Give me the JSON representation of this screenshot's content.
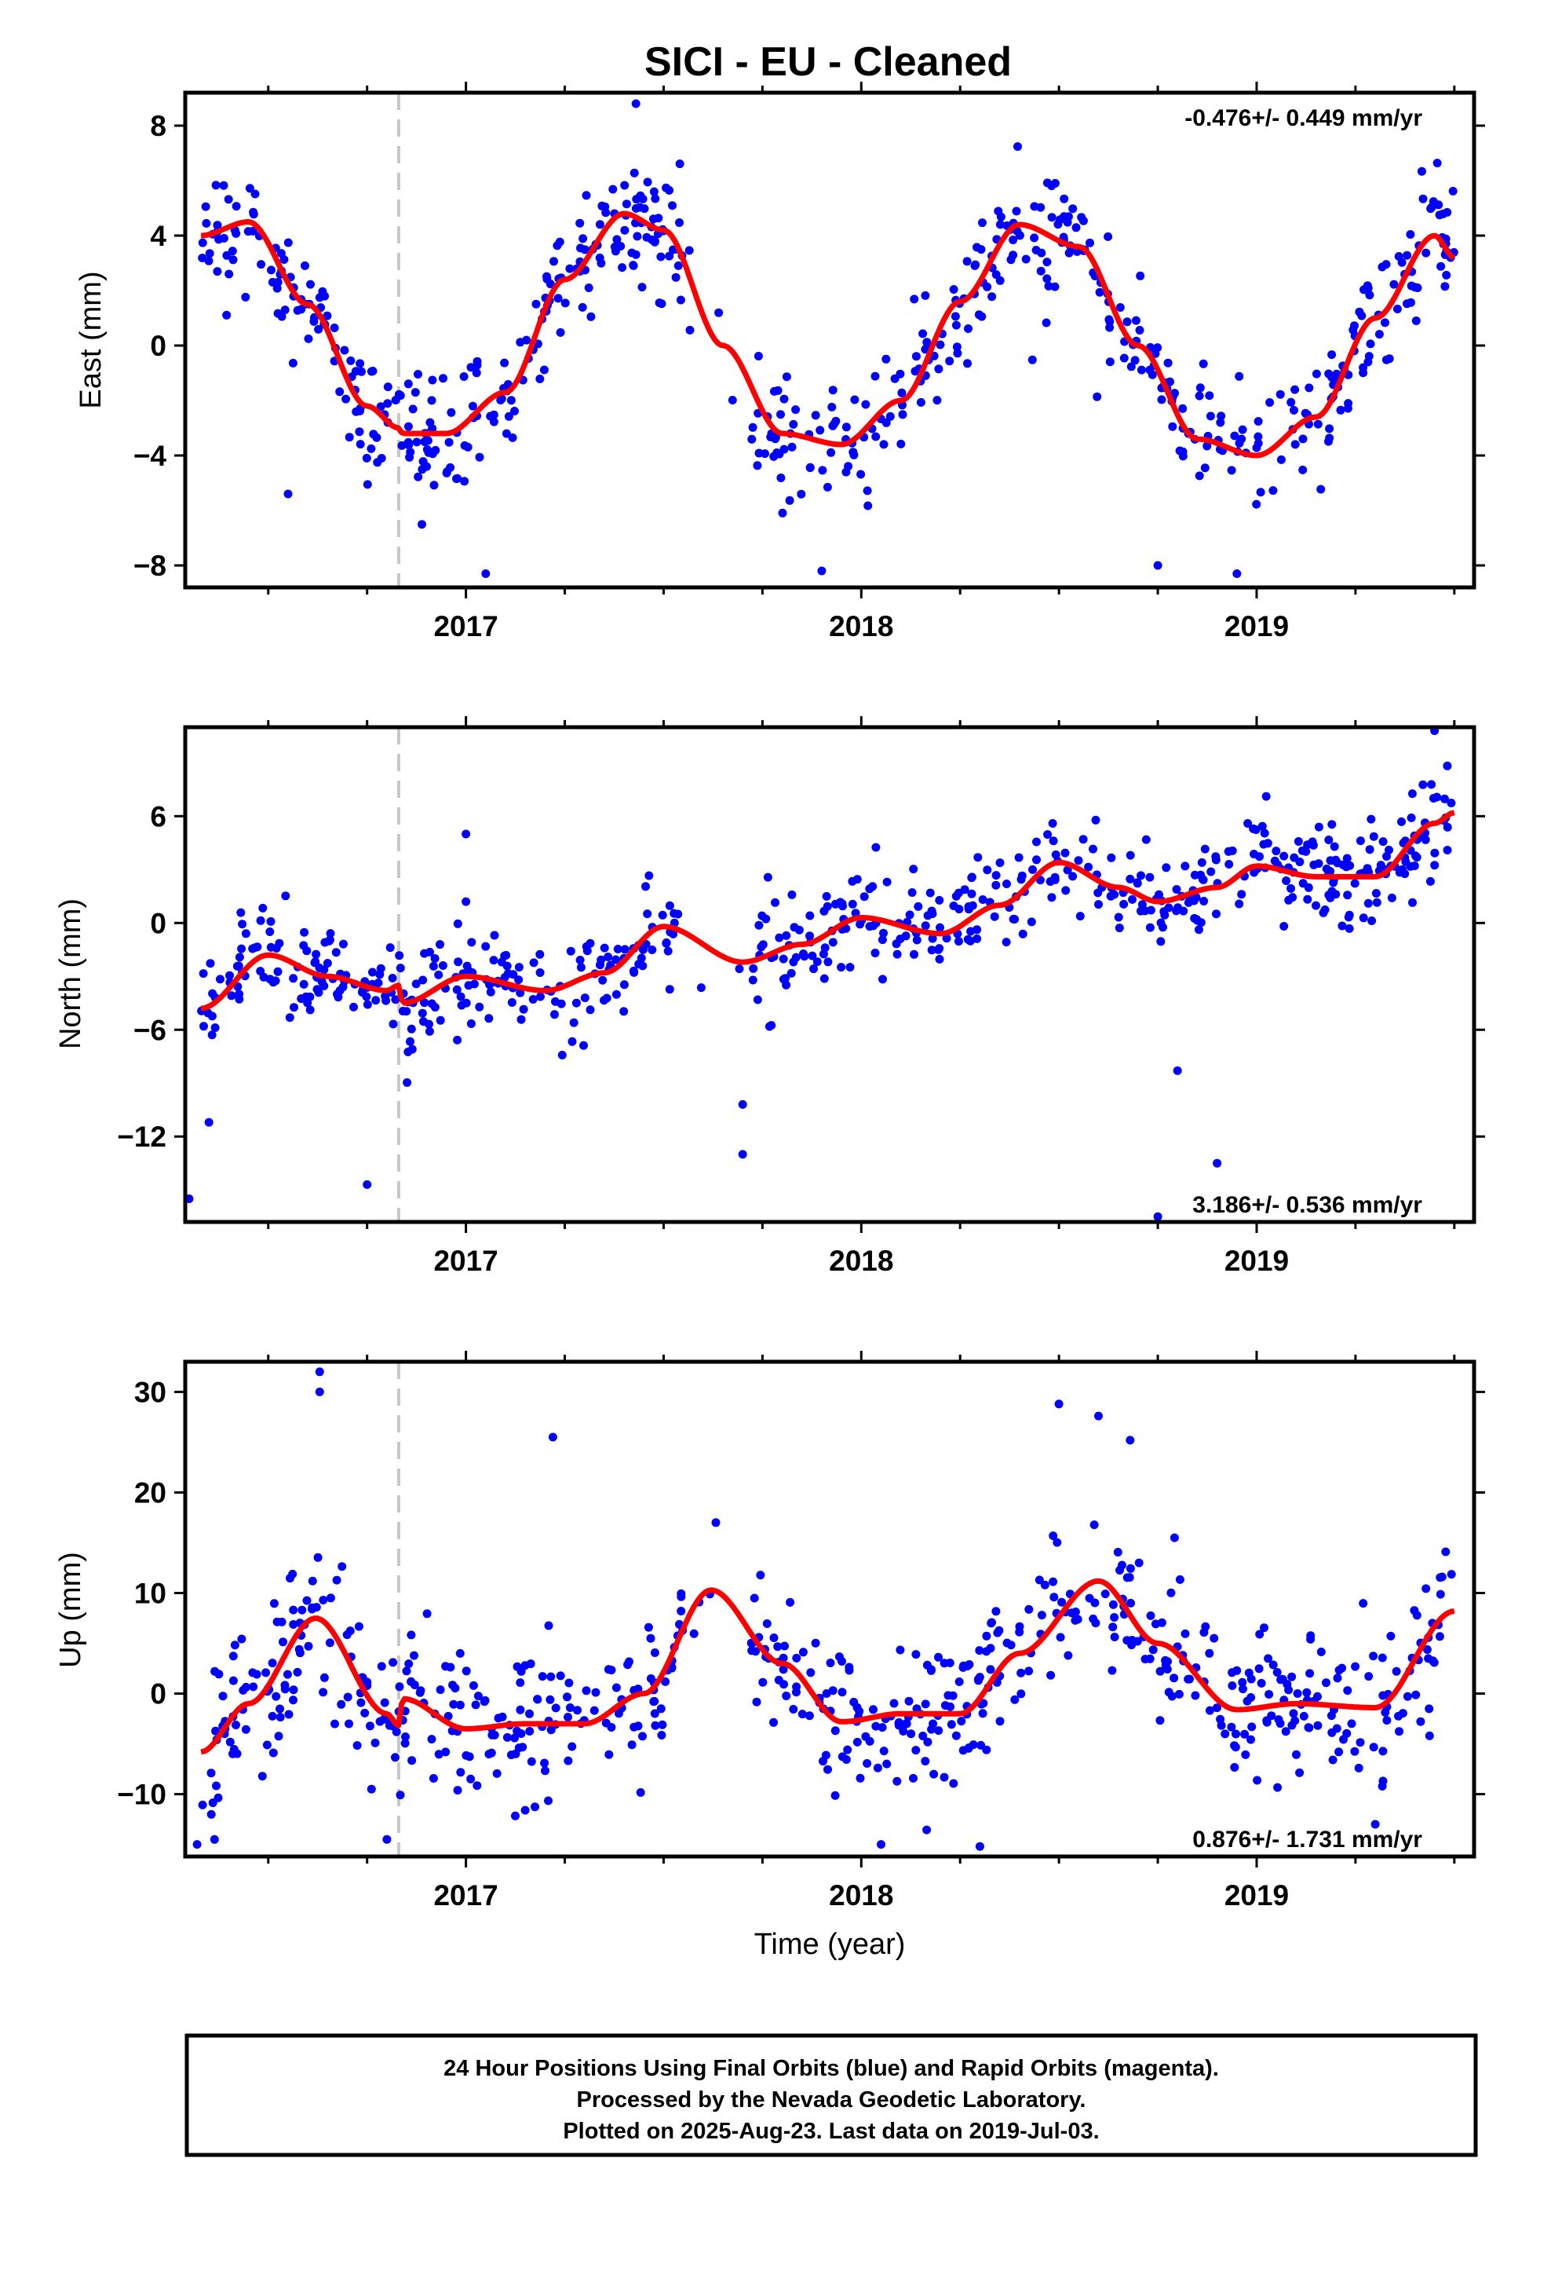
{
  "title": "SICI  - EU - Cleaned",
  "xlabel": "Time (year)",
  "footer": {
    "lines": [
      "24 Hour Positions Using Final Orbits (blue) and Rapid Orbits (magenta).",
      "Processed by the Nevada Geodetic Laboratory.",
      "Plotted on 2025-Aug-23. Last data on 2019-Jul-03."
    ]
  },
  "colors": {
    "points": "#0000ff",
    "fit": "#ff0000",
    "event_line": "#c8c8c8",
    "frame": "#000000"
  },
  "chart_data": [
    {
      "type": "scatter",
      "panel": "east",
      "ylabel": "East (mm)",
      "rate_text": "-0.476+/- 0.449 mm/yr",
      "rate_position": "top-right",
      "xlim": [
        2016.29,
        2019.55
      ],
      "ylim": [
        -8.8,
        9.2
      ],
      "xticks": [
        2017,
        2018,
        2019
      ],
      "yticks": [
        -8,
        -4,
        0,
        4,
        8
      ],
      "event_line_x": 2016.83,
      "fit_model": {
        "x": [
          2016.33,
          2016.45,
          2016.6,
          2016.75,
          2016.83,
          2016.84,
          2016.95,
          2017.1,
          2017.25,
          2017.4,
          2017.5,
          2017.65,
          2017.8,
          2017.95,
          2018.1,
          2018.25,
          2018.4,
          2018.55,
          2018.7,
          2018.85,
          2019.0,
          2019.15,
          2019.3,
          2019.45,
          2019.5
        ],
        "y": [
          4.0,
          4.5,
          1.5,
          -2.2,
          -3.0,
          -3.2,
          -3.2,
          -1.7,
          2.4,
          4.8,
          4.2,
          0.0,
          -3.2,
          -3.6,
          -2.0,
          1.6,
          4.4,
          3.6,
          0.0,
          -3.4,
          -4.0,
          -2.6,
          1.0,
          4.0,
          3.2
        ]
      },
      "scatter_model": {
        "n": 640,
        "noise": 1.15,
        "gap": [
          2017.55,
          2017.72
        ],
        "gap_density": 0.12,
        "outliers": [
          [
            2017.43,
            8.8
          ],
          [
            2017.05,
            -8.3
          ],
          [
            2017.9,
            -8.2
          ],
          [
            2018.75,
            -8.0
          ],
          [
            2018.95,
            -8.3
          ],
          [
            2016.55,
            -5.4
          ]
        ]
      }
    },
    {
      "type": "scatter",
      "panel": "north",
      "ylabel": "North (mm)",
      "rate_text": "3.186+/- 0.536 mm/yr",
      "rate_position": "bottom-right",
      "xlim": [
        2016.29,
        2019.55
      ],
      "ylim": [
        -16.8,
        11.0
      ],
      "xticks": [
        2017,
        2018,
        2019
      ],
      "yticks": [
        -12,
        -6,
        0,
        6
      ],
      "event_line_x": 2016.83,
      "fit_model": {
        "x": [
          2016.33,
          2016.5,
          2016.65,
          2016.8,
          2016.83,
          2016.84,
          2017.0,
          2017.2,
          2017.35,
          2017.5,
          2017.7,
          2017.85,
          2018.0,
          2018.2,
          2018.35,
          2018.5,
          2018.65,
          2018.75,
          2018.9,
          2019.0,
          2019.15,
          2019.3,
          2019.45,
          2019.5
        ],
        "y": [
          -4.8,
          -1.8,
          -3.0,
          -3.8,
          -3.5,
          -4.5,
          -3.0,
          -3.8,
          -2.8,
          -0.2,
          -2.2,
          -1.2,
          0.3,
          -0.6,
          1.0,
          3.4,
          2.0,
          1.2,
          2.0,
          3.2,
          2.6,
          2.6,
          5.6,
          6.2
        ]
      },
      "scatter_model": {
        "n": 640,
        "noise": 1.4,
        "gap": [
          2017.55,
          2017.72
        ],
        "gap_density": 0.12,
        "outliers": [
          [
            2016.3,
            -15.5
          ],
          [
            2016.75,
            -14.7
          ],
          [
            2017.7,
            -13.0
          ],
          [
            2017.7,
            -10.2
          ],
          [
            2018.75,
            -16.5
          ],
          [
            2018.9,
            -13.5
          ],
          [
            2018.8,
            -8.3
          ],
          [
            2019.45,
            10.8
          ],
          [
            2017.0,
            5.0
          ],
          [
            2016.35,
            -11.2
          ]
        ]
      }
    },
    {
      "type": "scatter",
      "panel": "up",
      "ylabel": "Up (mm)",
      "xlabel": "Time (year)",
      "rate_text": "0.876+/- 1.731 mm/yr",
      "rate_position": "bottom-right",
      "xlim": [
        2016.29,
        2019.55
      ],
      "ylim": [
        -16.2,
        33.0
      ],
      "xticks": [
        2017,
        2018,
        2019
      ],
      "yticks": [
        -10,
        0,
        10,
        20,
        30
      ],
      "event_line_x": 2016.83,
      "fit_model": {
        "x": [
          2016.33,
          2016.45,
          2016.62,
          2016.8,
          2016.83,
          2016.84,
          2017.0,
          2017.15,
          2017.3,
          2017.45,
          2017.62,
          2017.8,
          2017.95,
          2018.1,
          2018.25,
          2018.4,
          2018.6,
          2018.75,
          2018.95,
          2019.1,
          2019.3,
          2019.5
        ],
        "y": [
          -5.8,
          -1.0,
          7.5,
          -2.0,
          -3.2,
          -0.5,
          -3.5,
          -3.0,
          -3.0,
          0.0,
          10.3,
          3.0,
          -2.8,
          -2.0,
          -2.0,
          4.0,
          11.2,
          5.0,
          -1.6,
          -1.0,
          -1.4,
          8.2
        ]
      },
      "scatter_model": {
        "n": 640,
        "noise": 3.8,
        "gap": [
          2017.55,
          2017.72
        ],
        "gap_density": 0.18,
        "outliers": [
          [
            2016.63,
            32.0
          ],
          [
            2016.63,
            30.0
          ],
          [
            2017.22,
            25.5
          ],
          [
            2018.5,
            28.8
          ],
          [
            2018.6,
            27.6
          ],
          [
            2018.68,
            25.2
          ],
          [
            2016.32,
            -15.0
          ],
          [
            2018.05,
            -15.0
          ],
          [
            2018.3,
            -15.2
          ],
          [
            2019.3,
            -13.0
          ],
          [
            2016.8,
            -14.5
          ]
        ]
      }
    }
  ]
}
